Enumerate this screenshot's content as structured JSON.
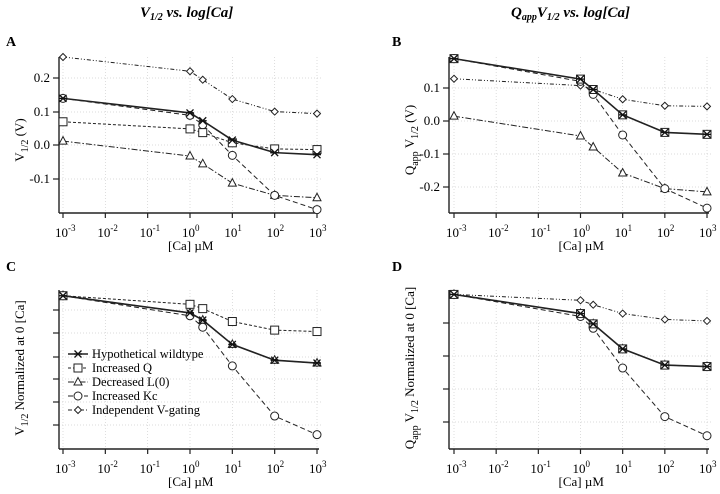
{
  "titles": {
    "left": {
      "main": "V",
      "sub": "1/2",
      "rest": " vs. log[Ca]"
    },
    "right": {
      "pre": "Q",
      "pre_sub": "app",
      "main": "V",
      "sub": "1/2",
      "rest": " vs. log[Ca]"
    }
  },
  "legend": [
    {
      "key": "wt",
      "label": "Hypothetical wildtype"
    },
    {
      "key": "q",
      "label": "Increased Q"
    },
    {
      "key": "l0",
      "label": "Decreased L(0)"
    },
    {
      "key": "kc",
      "label": "Increased Kc"
    },
    {
      "key": "vg",
      "label": "Independent V-gating"
    }
  ],
  "chart_data": [
    {
      "panel": "A",
      "type": "line",
      "title": "V1/2 vs. log[Ca]",
      "xlabel": "[Ca] µM",
      "ylabel": "V1/2 (V)",
      "xscale": "log",
      "x": [
        0.001,
        1,
        2,
        10,
        100,
        1000
      ],
      "xticks": [
        "10-3",
        "10-2",
        "10-1",
        "100",
        "101",
        "102",
        "103"
      ],
      "yticks": [
        "0.2",
        "0.1",
        "0.0",
        "-0.1"
      ],
      "ylim": [
        -0.2,
        0.26
      ],
      "grid": true,
      "series": [
        {
          "key": "wt",
          "name": "Hypothetical wildtype",
          "values": [
            0.138,
            0.095,
            0.072,
            0.015,
            -0.022,
            -0.028
          ]
        },
        {
          "key": "q",
          "name": "Increased Q",
          "values": [
            0.069,
            0.048,
            0.037,
            0.007,
            -0.011,
            -0.013
          ]
        },
        {
          "key": "l0",
          "name": "Decreased L(0)",
          "values": [
            0.012,
            -0.032,
            -0.055,
            -0.112,
            -0.148,
            -0.155
          ]
        },
        {
          "key": "kc",
          "name": "Increased Kc",
          "values": [
            0.138,
            0.088,
            0.06,
            -0.03,
            -0.148,
            -0.19
          ]
        },
        {
          "key": "vg",
          "name": "Independent V-gating",
          "values": [
            0.26,
            0.218,
            0.193,
            0.136,
            0.099,
            0.093
          ]
        }
      ]
    },
    {
      "panel": "B",
      "type": "line",
      "title": "QappV1/2 vs. log[Ca]",
      "xlabel": "[Ca] µM",
      "ylabel": "QappV1/2 (V)",
      "xscale": "log",
      "x": [
        0.001,
        1,
        2,
        10,
        100,
        1000
      ],
      "xticks": [
        "10-3",
        "10-2",
        "10-1",
        "100",
        "101",
        "102",
        "103"
      ],
      "yticks": [
        "0.1",
        "0.0",
        "-0.1",
        "-0.2"
      ],
      "ylim": [
        -0.28,
        0.2
      ],
      "grid": true,
      "series": [
        {
          "key": "wt",
          "name": "Hypothetical wildtype",
          "values": [
            0.195,
            0.132,
            0.1,
            0.022,
            -0.032,
            -0.038
          ]
        },
        {
          "key": "q",
          "name": "Increased Q",
          "values": [
            0.195,
            0.132,
            0.1,
            0.022,
            -0.032,
            -0.038
          ]
        },
        {
          "key": "l0",
          "name": "Decreased L(0)",
          "values": [
            0.018,
            -0.043,
            -0.077,
            -0.157,
            -0.205,
            -0.215
          ]
        },
        {
          "key": "kc",
          "name": "Increased Kc",
          "values": [
            0.195,
            0.125,
            0.085,
            -0.04,
            -0.205,
            -0.265
          ]
        },
        {
          "key": "vg",
          "name": "Independent V-gating",
          "values": [
            0.133,
            0.112,
            0.1,
            0.07,
            0.05,
            0.048
          ]
        }
      ]
    },
    {
      "panel": "C",
      "type": "line",
      "xlabel": "[Ca] µM",
      "ylabel": "V1/2 Normalized at 0 [Ca]",
      "xscale": "log",
      "x": [
        0.001,
        1,
        2,
        10,
        100,
        1000
      ],
      "xticks": [
        "10-3",
        "10-2",
        "10-1",
        "100",
        "101",
        "102",
        "103"
      ],
      "yticks": [],
      "ylim": [
        -0.07,
        1.04
      ],
      "grid": true,
      "legend_position": "center-left",
      "series": [
        {
          "key": "wt",
          "name": "Hypothetical wildtype",
          "values": [
            1.0,
            0.88,
            0.83,
            0.66,
            0.55,
            0.53
          ]
        },
        {
          "key": "q",
          "name": "Increased Q",
          "values": [
            1.0,
            0.94,
            0.91,
            0.82,
            0.76,
            0.75
          ]
        },
        {
          "key": "l0",
          "name": "Decreased L(0)",
          "values": [
            1.0,
            0.88,
            0.83,
            0.66,
            0.55,
            0.53
          ]
        },
        {
          "key": "kc",
          "name": "Increased Kc",
          "values": [
            1.0,
            0.86,
            0.78,
            0.51,
            0.16,
            0.03
          ]
        },
        {
          "key": "vg",
          "name": "Independent V-gating",
          "values": [
            1.0,
            0.88,
            0.83,
            0.66,
            0.55,
            0.53
          ]
        }
      ]
    },
    {
      "panel": "D",
      "type": "line",
      "xlabel": "[Ca] µM",
      "ylabel": "QappV1/2 Normalized at 0 [Ca]",
      "xscale": "log",
      "x": [
        0.001,
        1,
        2,
        10,
        100,
        1000
      ],
      "xticks": [
        "10-3",
        "10-2",
        "10-1",
        "100",
        "101",
        "102",
        "103"
      ],
      "yticks": [],
      "ylim": [
        -0.05,
        1.03
      ],
      "grid": true,
      "series": [
        {
          "key": "wt",
          "name": "Hypothetical wildtype",
          "values": [
            1.0,
            0.87,
            0.8,
            0.63,
            0.52,
            0.51
          ]
        },
        {
          "key": "q",
          "name": "Increased Q",
          "values": [
            1.0,
            0.87,
            0.8,
            0.63,
            0.52,
            0.51
          ]
        },
        {
          "key": "l0",
          "name": "Decreased L(0)",
          "values": [
            1.0,
            0.87,
            0.8,
            0.63,
            0.52,
            0.51
          ]
        },
        {
          "key": "kc",
          "name": "Increased Kc",
          "values": [
            1.0,
            0.85,
            0.77,
            0.5,
            0.17,
            0.04
          ]
        },
        {
          "key": "vg",
          "name": "Independent V-gating",
          "values": [
            1.0,
            0.96,
            0.93,
            0.87,
            0.83,
            0.82
          ]
        }
      ]
    }
  ],
  "styles": {
    "wt": {
      "dash": "",
      "width": 1.6,
      "marker": "star"
    },
    "q": {
      "dash": "3 2",
      "width": 1,
      "marker": "square"
    },
    "l0": {
      "dash": "6 2 1.5 2",
      "width": 1,
      "marker": "triangle"
    },
    "kc": {
      "dash": "5 3",
      "width": 1,
      "marker": "circle"
    },
    "vg": {
      "dash": "4 2 1 2 1 2",
      "width": 1,
      "marker": "diamond"
    }
  }
}
